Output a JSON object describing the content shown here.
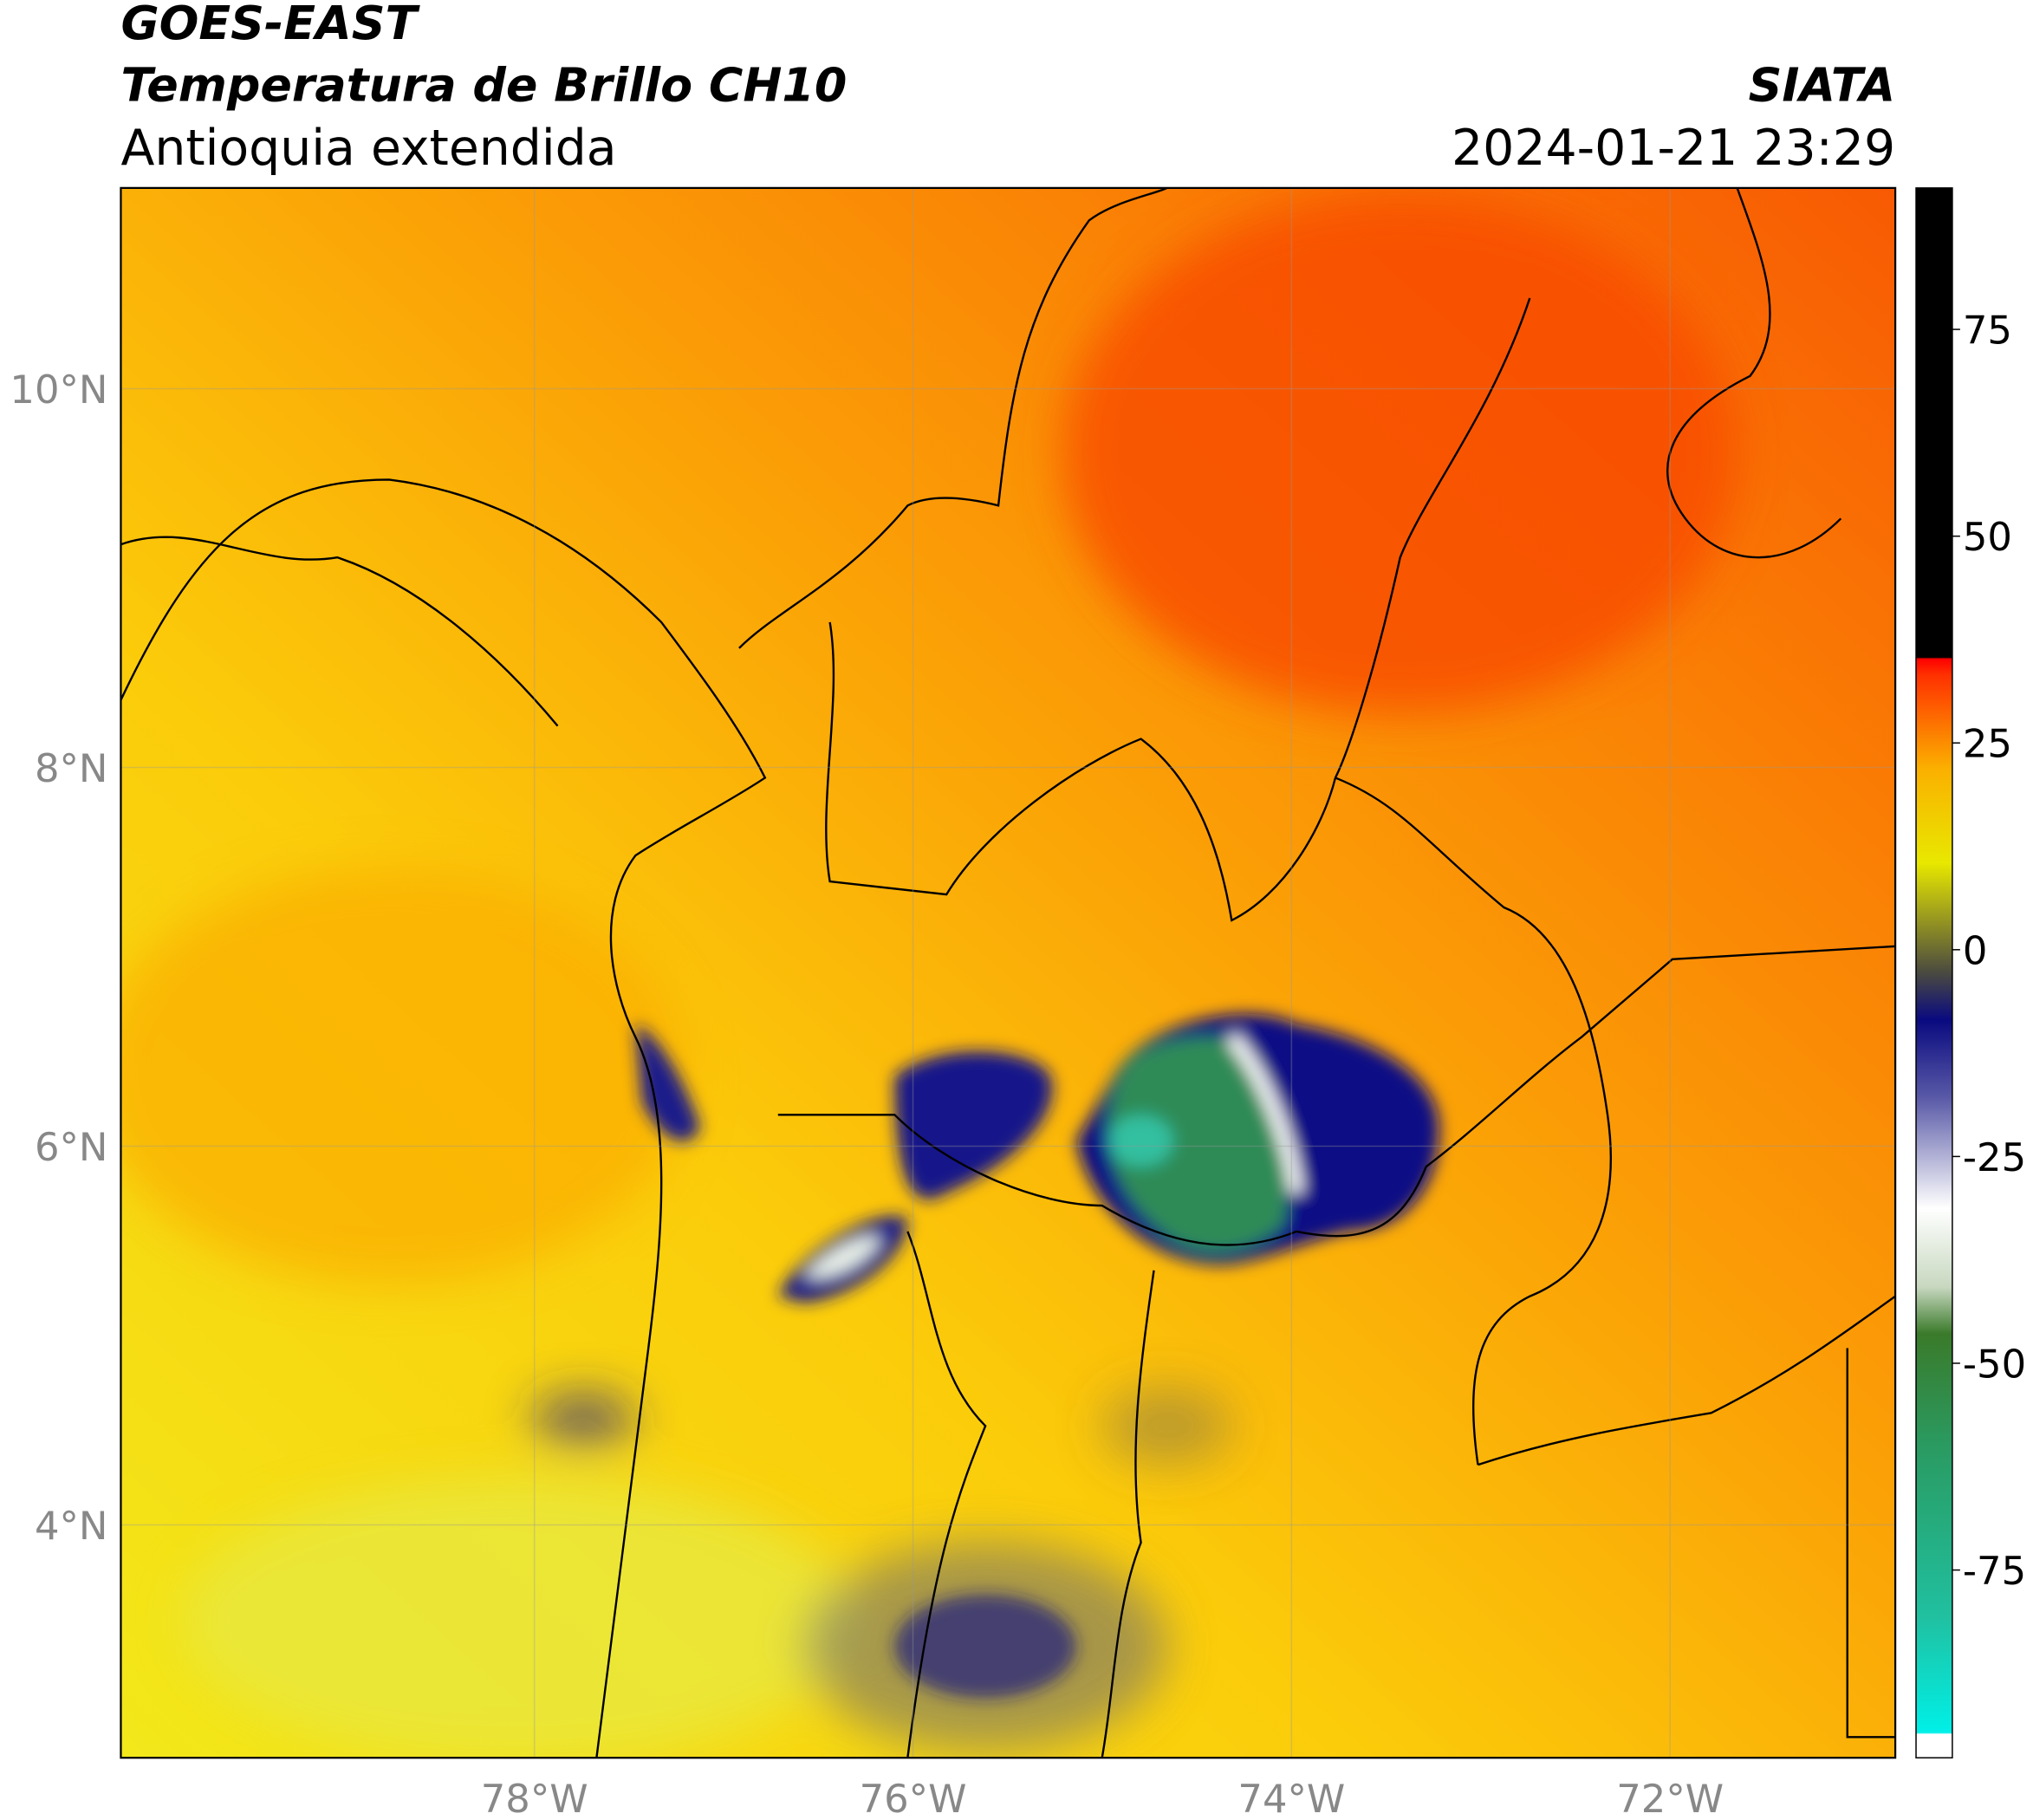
{
  "header": {
    "title": "GOES-EAST",
    "subtitle": "Temperatura de Brillo CH10",
    "region": "Antioquia extendida",
    "source": "SIATA",
    "datetime": "2024-01-21 23:29"
  },
  "map": {
    "lon_range": [
      -80.185,
      -70.81
    ],
    "lat_range": [
      2.77,
      11.06
    ],
    "lon_ticks": [
      {
        "value": -78,
        "label": "78°W"
      },
      {
        "value": -76,
        "label": "76°W"
      },
      {
        "value": -74,
        "label": "74°W"
      },
      {
        "value": -72,
        "label": "72°W"
      }
    ],
    "lat_ticks": [
      {
        "value": 4,
        "label": "4°N"
      },
      {
        "value": 6,
        "label": "6°N"
      },
      {
        "value": 8,
        "label": "8°N"
      },
      {
        "value": 10,
        "label": "10°N"
      }
    ],
    "grid": true
  },
  "colorbar": {
    "range": [
      -97.7,
      92.1
    ],
    "ticks": [
      -75,
      -50,
      -25,
      0,
      25,
      50,
      75
    ]
  }
}
